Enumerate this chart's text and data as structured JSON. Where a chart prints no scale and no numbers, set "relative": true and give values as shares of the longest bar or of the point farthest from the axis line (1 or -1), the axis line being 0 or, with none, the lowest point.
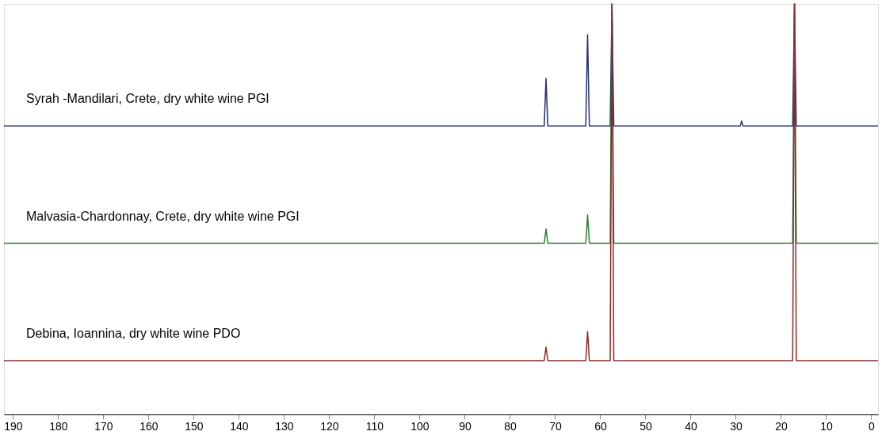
{
  "chart_data": {
    "type": "line",
    "relative": true,
    "xlim": [
      192,
      -1.5
    ],
    "xticks": [
      190,
      180,
      170,
      160,
      150,
      140,
      130,
      120,
      110,
      100,
      90,
      80,
      70,
      60,
      50,
      40,
      30,
      20,
      10,
      0
    ],
    "x": [
      192,
      72.4,
      72,
      71.6,
      63.2,
      62.8,
      62.4,
      57.8,
      57.4,
      57.0,
      29,
      28.7,
      28.4,
      17.4,
      17,
      16.6,
      -1.5
    ],
    "series": [
      {
        "name": "Syrah -Mandilari, Crete, dry white wine PGI",
        "color": "#27306e",
        "values": [
          0.703,
          0.703,
          0.819,
          0.703,
          0.703,
          0.925,
          0.703,
          0.703,
          1,
          0.703,
          0.703,
          0.715,
          0.703,
          0.703,
          1,
          0.703,
          0.703
        ]
      },
      {
        "name": "Malvasia-Chardonnay, Crete, dry white wine PGI",
        "color": "#2e7d32",
        "values": [
          0.417,
          0.417,
          0.452,
          0.417,
          0.417,
          0.486,
          0.417,
          0.417,
          1,
          0.417,
          0.417,
          0.417,
          0.417,
          0.417,
          1,
          0.417,
          0.417
        ]
      },
      {
        "name": "Debina, Ioannina, dry white wine PDO",
        "color": "#8b2c2c",
        "values": [
          0.131,
          0.131,
          0.164,
          0.131,
          0.131,
          0.202,
          0.131,
          0.131,
          1,
          0.131,
          0.131,
          0.131,
          0.131,
          0.131,
          1,
          0.131,
          0.131
        ]
      }
    ],
    "legend": false,
    "grid": false
  }
}
